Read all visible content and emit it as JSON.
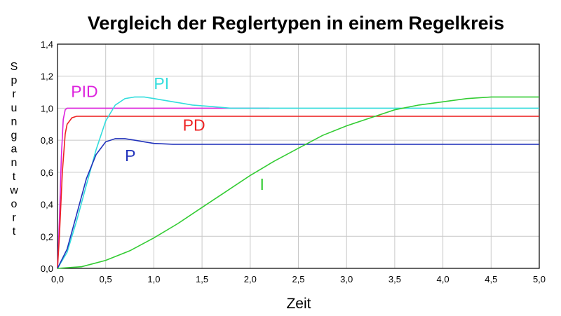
{
  "chart_data": {
    "type": "line",
    "title": "Vergleich der Reglertypen in einem Regelkreis",
    "xlabel": "Zeit",
    "ylabel": "Sprungantwort",
    "xlim": [
      0,
      5
    ],
    "ylim": [
      0,
      1.4
    ],
    "x_ticks": [
      "0,0",
      "0,5",
      "1,0",
      "1,5",
      "2,0",
      "2,5",
      "3,0",
      "3,5",
      "4,0",
      "4,5",
      "5,0"
    ],
    "y_ticks": [
      "0,0",
      "0,2",
      "0,4",
      "0,6",
      "0,8",
      "1,0",
      "1,2",
      "1,4"
    ],
    "grid": true,
    "series": [
      {
        "name": "PID",
        "color": "#dd22dd",
        "x": [
          0,
          0.02,
          0.04,
          0.06,
          0.08,
          0.1,
          0.15,
          0.3,
          1.0,
          2.2
        ],
        "y": [
          0,
          0.3,
          0.7,
          0.93,
          0.99,
          1.0,
          1.0,
          1.0,
          1.0,
          1.0
        ]
      },
      {
        "name": "PD",
        "color": "#ee2222",
        "x": [
          0,
          0.02,
          0.05,
          0.08,
          0.1,
          0.15,
          0.2,
          0.3,
          0.5,
          1.0,
          2.0,
          3.0,
          4.0,
          5.0
        ],
        "y": [
          0,
          0.2,
          0.6,
          0.84,
          0.9,
          0.94,
          0.95,
          0.95,
          0.95,
          0.95,
          0.95,
          0.95,
          0.95,
          0.95
        ]
      },
      {
        "name": "PI",
        "color": "#33dddd",
        "x": [
          0,
          0.1,
          0.2,
          0.3,
          0.4,
          0.5,
          0.6,
          0.7,
          0.8,
          0.9,
          1.0,
          1.2,
          1.4,
          1.6,
          1.8,
          2.0,
          2.5,
          3.0,
          3.5,
          4.0,
          4.5,
          5.0
        ],
        "y": [
          0,
          0.1,
          0.3,
          0.52,
          0.74,
          0.92,
          1.02,
          1.06,
          1.07,
          1.07,
          1.06,
          1.04,
          1.02,
          1.01,
          1.0,
          1.0,
          1.0,
          1.0,
          1.0,
          1.0,
          1.0,
          1.0
        ]
      },
      {
        "name": "P",
        "color": "#2233bb",
        "x": [
          0,
          0.1,
          0.2,
          0.3,
          0.4,
          0.5,
          0.6,
          0.7,
          0.8,
          0.9,
          1.0,
          1.2,
          1.5,
          2.0,
          3.0,
          4.0,
          5.0
        ],
        "y": [
          0,
          0.12,
          0.34,
          0.56,
          0.71,
          0.79,
          0.81,
          0.81,
          0.8,
          0.79,
          0.78,
          0.775,
          0.775,
          0.775,
          0.775,
          0.775,
          0.775
        ]
      },
      {
        "name": "I",
        "color": "#33cc33",
        "x": [
          0,
          0.25,
          0.5,
          0.75,
          1.0,
          1.25,
          1.5,
          1.75,
          2.0,
          2.25,
          2.5,
          2.75,
          3.0,
          3.25,
          3.5,
          3.75,
          4.0,
          4.25,
          4.5,
          4.75,
          5.0
        ],
        "y": [
          0,
          0.01,
          0.05,
          0.11,
          0.19,
          0.28,
          0.38,
          0.48,
          0.58,
          0.67,
          0.75,
          0.83,
          0.89,
          0.94,
          0.99,
          1.02,
          1.04,
          1.06,
          1.07,
          1.07,
          1.07
        ]
      }
    ],
    "annotations": [
      {
        "text": "PID",
        "x": 0.14,
        "y": 1.07,
        "color": "#dd22dd"
      },
      {
        "text": "PI",
        "x": 1.0,
        "y": 1.12,
        "color": "#33dddd"
      },
      {
        "text": "PD",
        "x": 1.3,
        "y": 0.86,
        "color": "#ee2222"
      },
      {
        "text": "P",
        "x": 0.7,
        "y": 0.67,
        "color": "#2233bb"
      },
      {
        "text": "I",
        "x": 2.1,
        "y": 0.49,
        "color": "#33cc33"
      }
    ]
  }
}
